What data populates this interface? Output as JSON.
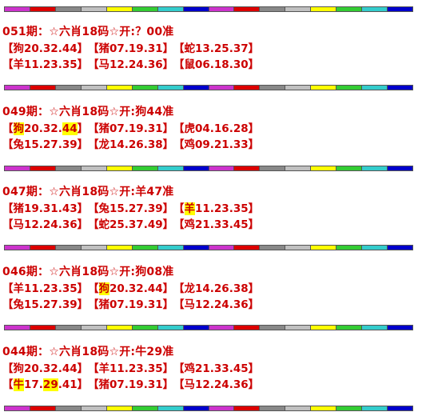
{
  "stripe_colors": [
    "#cc33cc",
    "#dd0000",
    "#888888",
    "#c0c0c0",
    "#ffff00",
    "#33cc33",
    "#33cccc",
    "#0000cc"
  ],
  "blocks": [
    {
      "title": "051期：☆六肖18码☆开:？00准",
      "rows": [
        [
          {
            "segs": [
              {
                "t": "【狗20.32.44】"
              }
            ]
          },
          {
            "segs": [
              {
                "t": "【猪07.19.31】"
              }
            ]
          },
          {
            "segs": [
              {
                "t": "【蛇13.25.37】"
              }
            ]
          }
        ],
        [
          {
            "segs": [
              {
                "t": "【羊11.23.35】"
              }
            ]
          },
          {
            "segs": [
              {
                "t": "【马12.24.36】"
              }
            ]
          },
          {
            "segs": [
              {
                "t": "【鼠06.18.30】"
              }
            ]
          }
        ]
      ]
    },
    {
      "title": "049期：☆六肖18码☆开:狗44准",
      "rows": [
        [
          {
            "segs": [
              {
                "t": "【"
              },
              {
                "t": "狗",
                "hl": true
              },
              {
                "t": "20.32."
              },
              {
                "t": "44",
                "hl": true
              },
              {
                "t": "】"
              }
            ]
          },
          {
            "segs": [
              {
                "t": "【猪07.19.31】"
              }
            ]
          },
          {
            "segs": [
              {
                "t": "【虎04.16.28】"
              }
            ]
          }
        ],
        [
          {
            "segs": [
              {
                "t": "【兔15.27.39】"
              }
            ]
          },
          {
            "segs": [
              {
                "t": "【龙14.26.38】"
              }
            ]
          },
          {
            "segs": [
              {
                "t": "【鸡09.21.33】"
              }
            ]
          }
        ]
      ]
    },
    {
      "title": "047期：☆六肖18码☆开:羊47准",
      "rows": [
        [
          {
            "segs": [
              {
                "t": "【猪19.31.43】"
              }
            ]
          },
          {
            "segs": [
              {
                "t": "【兔15.27.39】"
              }
            ]
          },
          {
            "segs": [
              {
                "t": "【"
              },
              {
                "t": "羊",
                "hl": true
              },
              {
                "t": "11.23.35】"
              }
            ]
          }
        ],
        [
          {
            "segs": [
              {
                "t": "【马12.24.36】"
              }
            ]
          },
          {
            "segs": [
              {
                "t": "【蛇25.37.49】"
              }
            ]
          },
          {
            "segs": [
              {
                "t": "【鸡21.33.45】"
              }
            ]
          }
        ]
      ]
    },
    {
      "title": "046期：☆六肖18码☆开:狗08准",
      "rows": [
        [
          {
            "segs": [
              {
                "t": "【羊11.23.35】"
              }
            ]
          },
          {
            "segs": [
              {
                "t": "【"
              },
              {
                "t": "狗",
                "hl": true
              },
              {
                "t": "20.32.44】"
              }
            ]
          },
          {
            "segs": [
              {
                "t": "【龙14.26.38】"
              }
            ]
          }
        ],
        [
          {
            "segs": [
              {
                "t": "【兔15.27.39】"
              }
            ]
          },
          {
            "segs": [
              {
                "t": "【猪07.19.31】"
              }
            ]
          },
          {
            "segs": [
              {
                "t": "【马12.24.36】"
              }
            ]
          }
        ]
      ]
    },
    {
      "title": "044期：☆六肖18码☆开:牛29准",
      "rows": [
        [
          {
            "segs": [
              {
                "t": "【狗20.32.44】"
              }
            ]
          },
          {
            "segs": [
              {
                "t": "【羊11.23.35】"
              }
            ]
          },
          {
            "segs": [
              {
                "t": "【鸡21.33.45】"
              }
            ]
          }
        ],
        [
          {
            "segs": [
              {
                "t": "【"
              },
              {
                "t": "牛",
                "hl": true
              },
              {
                "t": "17."
              },
              {
                "t": "29",
                "hl": true
              },
              {
                "t": ".41】"
              }
            ]
          },
          {
            "segs": [
              {
                "t": "【猪07.19.31】"
              }
            ]
          },
          {
            "segs": [
              {
                "t": "【马12.24.36】"
              }
            ]
          }
        ]
      ]
    }
  ]
}
